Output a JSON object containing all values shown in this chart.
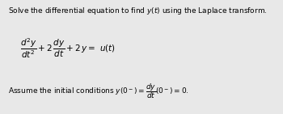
{
  "background_color": "#e8e8e8",
  "title_text": "Solve the differential equation to find $y(t)$ using the Laplace transform.",
  "equation": "$\\dfrac{d^2y}{dt^2} + 2\\,\\dfrac{dy}{dt} + 2\\,y = \\ u(t)$",
  "initial_conditions": "Assume the initial conditions $y(0^-)=\\dfrac{dy}{dt}(0^-)=0.$",
  "title_fontsize": 6.5,
  "eq_fontsize": 7.5,
  "ic_fontsize": 6.5,
  "fig_width": 3.5,
  "fig_height": 1.41,
  "dpi": 100
}
